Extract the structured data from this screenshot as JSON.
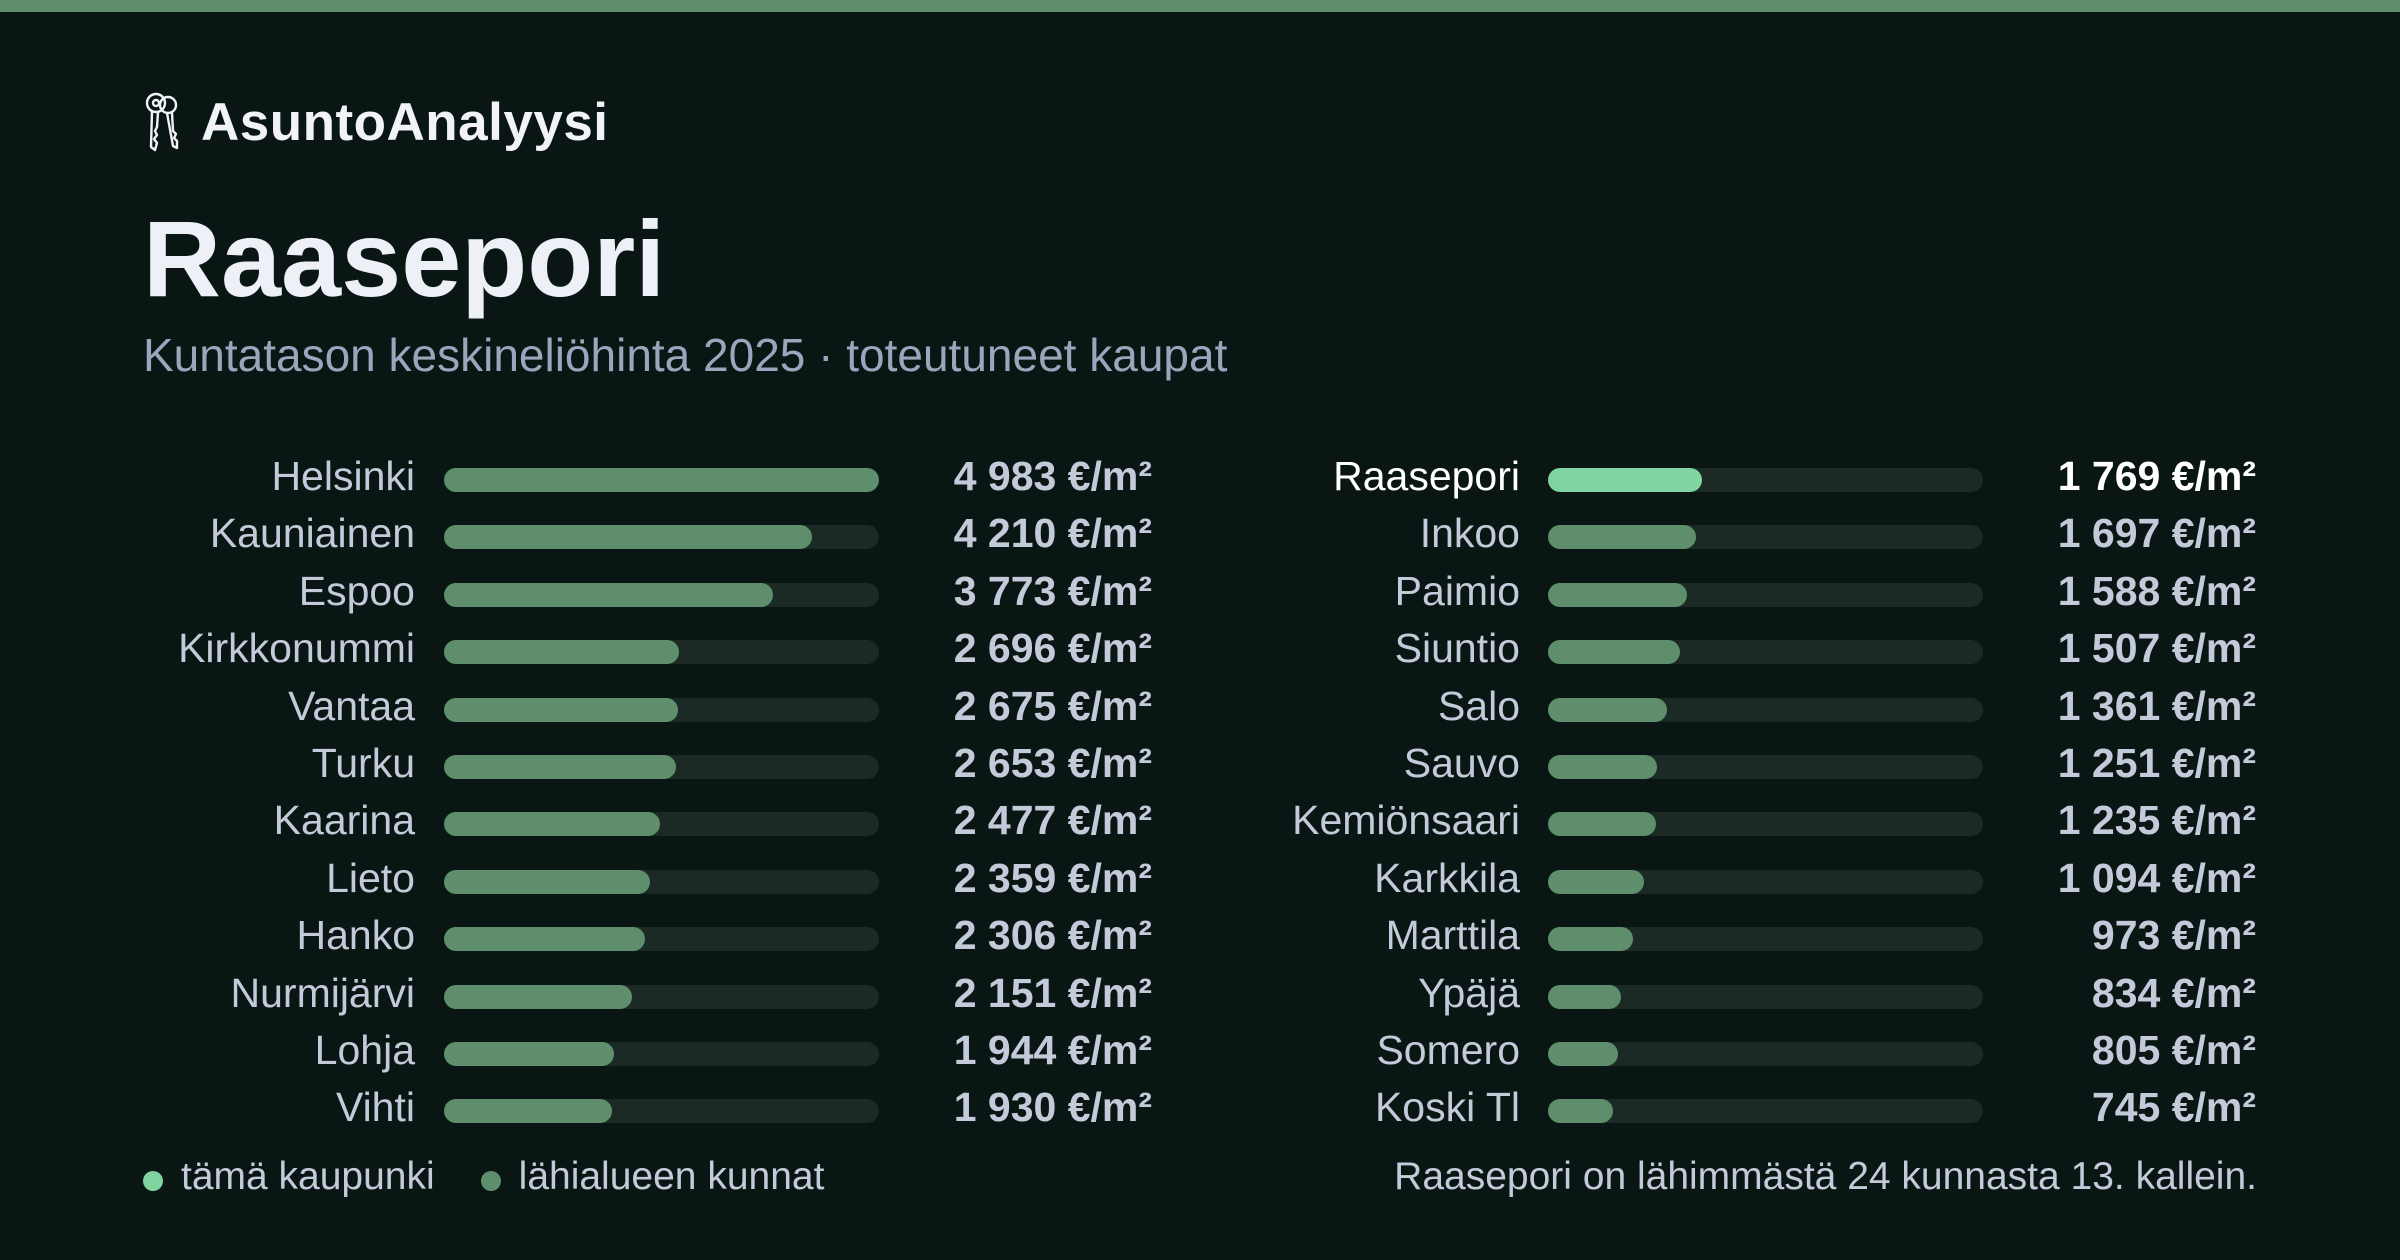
{
  "brand": {
    "name": "AsuntoAnalyysi",
    "icon": "keys-icon"
  },
  "title": "Raasepori",
  "subtitle": "Kuntatason keskineliöhinta 2025 · toteutuneet kaupat",
  "colors": {
    "background": "#0a1613",
    "accent": "#5f8e6c",
    "highlight": "#7fd49f",
    "track": "#1b2a25"
  },
  "chart_data": {
    "type": "bar",
    "orientation": "horizontal",
    "unit": "€/m²",
    "xlim": [
      0,
      4983
    ],
    "highlight": "Raasepori",
    "columns": [
      {
        "categories": [
          "Helsinki",
          "Kauniainen",
          "Espoo",
          "Kirkkonummi",
          "Vantaa",
          "Turku",
          "Kaarina",
          "Lieto",
          "Hanko",
          "Nurmijärvi",
          "Lohja",
          "Vihti"
        ],
        "values": [
          4983,
          4210,
          3773,
          2696,
          2675,
          2653,
          2477,
          2359,
          2306,
          2151,
          1944,
          1930
        ],
        "labels": [
          "4 983 €/m²",
          "4 210 €/m²",
          "3 773 €/m²",
          "2 696 €/m²",
          "2 675 €/m²",
          "2 653 €/m²",
          "2 477 €/m²",
          "2 359 €/m²",
          "2 306 €/m²",
          "2 151 €/m²",
          "1 944 €/m²",
          "1 930 €/m²"
        ]
      },
      {
        "categories": [
          "Raasepori",
          "Inkoo",
          "Paimio",
          "Siuntio",
          "Salo",
          "Sauvo",
          "Kemiönsaari",
          "Karkkila",
          "Marttila",
          "Ypäjä",
          "Somero",
          "Koski Tl"
        ],
        "values": [
          1769,
          1697,
          1588,
          1507,
          1361,
          1251,
          1235,
          1094,
          973,
          834,
          805,
          745
        ],
        "labels": [
          "1 769 €/m²",
          "1 697 €/m²",
          "1 588 €/m²",
          "1 507 €/m²",
          "1 361 €/m²",
          "1 251 €/m²",
          "1 235 €/m²",
          "1 094 €/m²",
          "973 €/m²",
          "834 €/m²",
          "805 €/m²",
          "745 €/m²"
        ]
      }
    ]
  },
  "legend": {
    "items": [
      {
        "label": "tämä kaupunki",
        "color": "#7fd49f"
      },
      {
        "label": "lähialueen kunnat",
        "color": "#5f8e6c"
      }
    ]
  },
  "footnote": "Raasepori on lähimmästä 24 kunnasta 13. kallein."
}
